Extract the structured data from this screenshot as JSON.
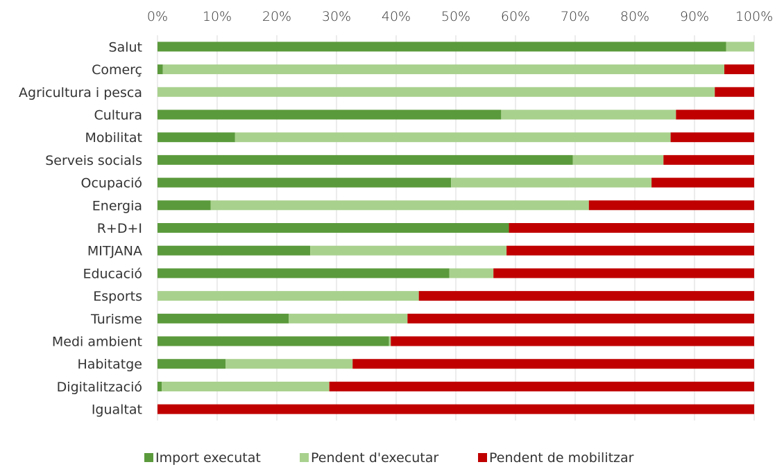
{
  "chart_data": {
    "type": "bar",
    "orientation": "horizontal",
    "stacked": "percent",
    "title": "",
    "xlabel": "",
    "ylabel": "",
    "xlim": [
      0,
      100
    ],
    "x_ticks": [
      "0%",
      "10%",
      "20%",
      "30%",
      "40%",
      "50%",
      "60%",
      "70%",
      "80%",
      "90%",
      "100%"
    ],
    "categories": [
      "Salut",
      "Comerç",
      "Agricultura i pesca",
      "Cultura",
      "Mobilitat",
      "Serveis socials",
      "Ocupació",
      "Energia",
      "R+D+I",
      "MITJANA",
      "Educació",
      "Esports",
      "Turisme",
      "Medi ambient",
      "Habitatge",
      "Digitalització",
      "Igualtat"
    ],
    "series": [
      {
        "name": "Import executat",
        "color": "#5b9a3c",
        "values": [
          95.3,
          0.9,
          0,
          57.6,
          13.0,
          69.6,
          49.2,
          8.9,
          58.9,
          25.6,
          48.9,
          0,
          22.0,
          38.8,
          11.4,
          0.7,
          0
        ]
      },
      {
        "name": "Pendent d'executar",
        "color": "#a9d18e",
        "values": [
          4.7,
          94.1,
          93.4,
          29.3,
          73.0,
          15.2,
          33.6,
          63.4,
          0,
          32.9,
          7.4,
          43.8,
          19.9,
          0.3,
          21.3,
          28.1,
          0
        ]
      },
      {
        "name": "Pendent de mobilitzar",
        "color": "#c00000",
        "values": [
          0,
          5.0,
          6.6,
          13.1,
          14.0,
          15.2,
          17.2,
          27.7,
          41.1,
          41.5,
          43.7,
          56.2,
          58.1,
          60.9,
          67.3,
          71.2,
          100
        ]
      }
    ],
    "grid": true,
    "legend": "bottom"
  }
}
